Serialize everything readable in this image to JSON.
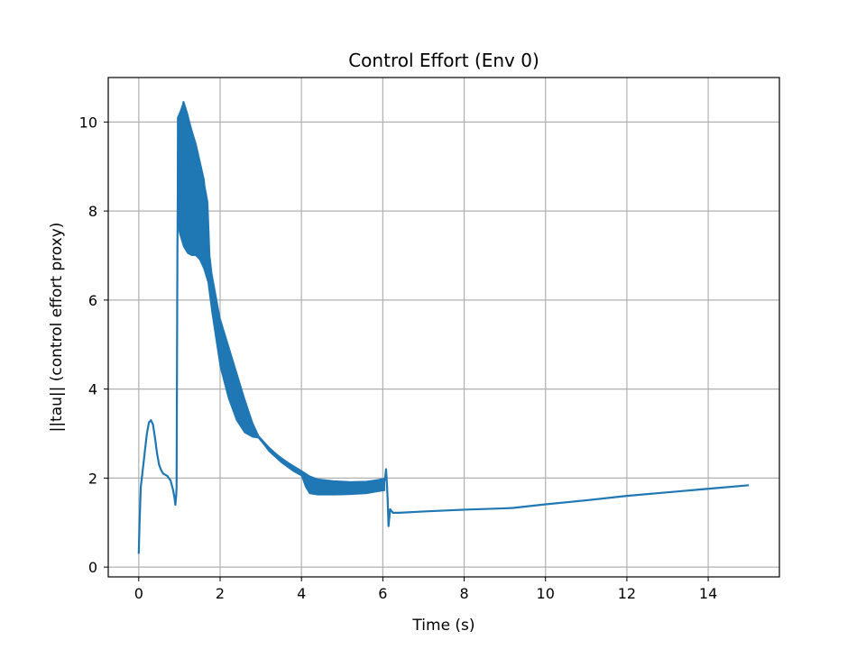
{
  "chart_data": {
    "type": "line",
    "title": "Control Effort (Env 0)",
    "xlabel": "Time (s)",
    "ylabel": "||tau|| (control effort proxy)",
    "xlim": [
      -0.75,
      15.75
    ],
    "ylim": [
      -0.22,
      11.0
    ],
    "xticks": [
      0,
      2,
      4,
      6,
      8,
      10,
      12,
      14
    ],
    "yticks": [
      0,
      2,
      4,
      6,
      8,
      10
    ],
    "grid": true,
    "line_color": "#1f77b4",
    "series": [
      {
        "points": [
          [
            0.0,
            0.3
          ],
          [
            0.02,
            1.0
          ],
          [
            0.05,
            1.8
          ],
          [
            0.1,
            2.2
          ],
          [
            0.15,
            2.6
          ],
          [
            0.2,
            3.0
          ],
          [
            0.25,
            3.25
          ],
          [
            0.3,
            3.3
          ],
          [
            0.35,
            3.2
          ],
          [
            0.4,
            2.9
          ],
          [
            0.45,
            2.55
          ],
          [
            0.5,
            2.3
          ],
          [
            0.55,
            2.18
          ],
          [
            0.6,
            2.1
          ],
          [
            0.7,
            2.05
          ],
          [
            0.78,
            1.95
          ],
          [
            0.84,
            1.75
          ],
          [
            0.88,
            1.55
          ],
          [
            0.9,
            1.4
          ],
          [
            0.92,
            1.6
          ],
          [
            0.93,
            1.8
          ],
          [
            0.95,
            7.0
          ],
          [
            0.97,
            10.0
          ],
          [
            1.0,
            9.9
          ],
          [
            1.05,
            10.2
          ],
          [
            1.1,
            10.45
          ],
          [
            1.15,
            10.3
          ],
          [
            1.3,
            9.8
          ],
          [
            1.4,
            9.5
          ],
          [
            1.5,
            9.1
          ],
          [
            1.6,
            8.7
          ],
          [
            1.65,
            8.1
          ],
          [
            1.7,
            7.1
          ],
          [
            1.75,
            6.9
          ],
          [
            1.8,
            6.4
          ],
          [
            1.9,
            5.8
          ],
          [
            2.0,
            5.3
          ],
          [
            2.2,
            4.6
          ],
          [
            2.4,
            4.0
          ],
          [
            2.6,
            3.5
          ],
          [
            2.8,
            3.1
          ],
          [
            3.0,
            2.85
          ],
          [
            3.2,
            2.65
          ],
          [
            3.5,
            2.45
          ],
          [
            3.8,
            2.25
          ],
          [
            4.0,
            2.12
          ],
          [
            4.1,
            2.05
          ],
          [
            4.2,
            1.98
          ],
          [
            4.4,
            1.95
          ],
          [
            4.6,
            1.92
          ],
          [
            5.0,
            1.9
          ],
          [
            5.5,
            1.88
          ],
          [
            5.8,
            1.88
          ],
          [
            6.0,
            1.9
          ],
          [
            6.05,
            1.95
          ],
          [
            6.08,
            2.2
          ],
          [
            6.1,
            1.9
          ],
          [
            6.12,
            1.5
          ],
          [
            6.14,
            0.92
          ],
          [
            6.18,
            1.3
          ],
          [
            6.25,
            1.22
          ],
          [
            6.4,
            1.22
          ],
          [
            7.0,
            1.25
          ],
          [
            8.0,
            1.29
          ],
          [
            9.0,
            1.32
          ],
          [
            9.2,
            1.33
          ],
          [
            10.0,
            1.41
          ],
          [
            11.0,
            1.5
          ],
          [
            12.0,
            1.6
          ],
          [
            13.0,
            1.68
          ],
          [
            14.0,
            1.76
          ],
          [
            15.0,
            1.84
          ]
        ]
      }
    ],
    "oscillation_band": {
      "upper": [
        [
          0.95,
          10.1
        ],
        [
          1.0,
          10.2
        ],
        [
          1.1,
          10.45
        ],
        [
          1.2,
          10.2
        ],
        [
          1.3,
          9.8
        ],
        [
          1.4,
          9.5
        ],
        [
          1.5,
          9.1
        ],
        [
          1.6,
          8.7
        ],
        [
          1.65,
          8.45
        ],
        [
          1.7,
          8.2
        ],
        [
          1.75,
          7.0
        ],
        [
          1.8,
          6.6
        ],
        [
          1.9,
          6.1
        ],
        [
          2.0,
          5.6
        ],
        [
          2.2,
          5.0
        ],
        [
          2.4,
          4.4
        ],
        [
          2.6,
          3.8
        ],
        [
          2.8,
          3.25
        ],
        [
          2.95,
          2.95
        ],
        [
          3.2,
          2.7
        ],
        [
          3.5,
          2.45
        ],
        [
          3.8,
          2.28
        ],
        [
          4.0,
          2.17
        ],
        [
          4.2,
          2.05
        ],
        [
          4.4,
          1.98
        ],
        [
          4.8,
          1.94
        ],
        [
          5.2,
          1.92
        ],
        [
          5.6,
          1.93
        ],
        [
          5.9,
          1.97
        ],
        [
          6.05,
          2.0
        ]
      ],
      "lower": [
        [
          0.95,
          7.8
        ],
        [
          1.0,
          7.5
        ],
        [
          1.1,
          7.2
        ],
        [
          1.2,
          7.05
        ],
        [
          1.3,
          7.0
        ],
        [
          1.4,
          7.0
        ],
        [
          1.5,
          6.9
        ],
        [
          1.6,
          6.7
        ],
        [
          1.7,
          6.4
        ],
        [
          1.8,
          5.7
        ],
        [
          1.9,
          5.1
        ],
        [
          2.0,
          4.5
        ],
        [
          2.2,
          3.8
        ],
        [
          2.4,
          3.3
        ],
        [
          2.6,
          3.02
        ],
        [
          2.8,
          2.92
        ],
        [
          2.95,
          2.9
        ],
        [
          3.2,
          2.6
        ],
        [
          3.5,
          2.35
        ],
        [
          3.8,
          2.15
        ],
        [
          4.0,
          2.05
        ],
        [
          4.1,
          1.8
        ],
        [
          4.2,
          1.65
        ],
        [
          4.4,
          1.62
        ],
        [
          4.8,
          1.62
        ],
        [
          5.2,
          1.63
        ],
        [
          5.6,
          1.65
        ],
        [
          5.9,
          1.7
        ],
        [
          6.05,
          1.72
        ]
      ]
    }
  }
}
